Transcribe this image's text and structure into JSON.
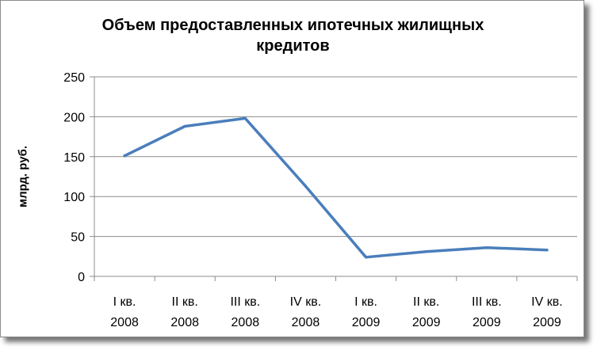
{
  "chart_data": {
    "type": "line",
    "title": "Объем предоставленных ипотечных жилищных кредитов",
    "title_lines": [
      "Объем предоставленных ипотечных жилищных",
      "кредитов"
    ],
    "ylabel": "млрд. руб.",
    "xlabel": "",
    "categories": [
      [
        "I кв.",
        "2008"
      ],
      [
        "II кв.",
        "2008"
      ],
      [
        "III кв.",
        "2008"
      ],
      [
        "IV кв.",
        "2008"
      ],
      [
        "I кв.",
        "2009"
      ],
      [
        "II кв.",
        "2009"
      ],
      [
        "III кв.",
        "2009"
      ],
      [
        "IV кв.",
        "2009"
      ]
    ],
    "series": [
      {
        "color": "#4a7ebb",
        "values": [
          151,
          188,
          198,
          113,
          24,
          31,
          36,
          33
        ]
      }
    ],
    "ylim": [
      0,
      250
    ],
    "yticks": [
      0,
      50,
      100,
      150,
      200,
      250
    ],
    "grid": true,
    "legend": "none"
  }
}
